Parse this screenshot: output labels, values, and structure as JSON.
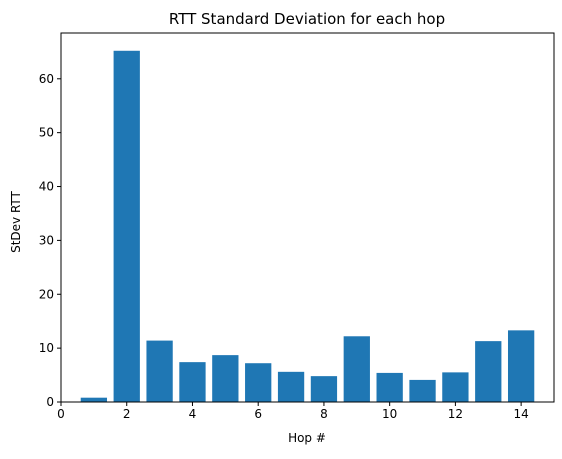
{
  "chart_data": {
    "type": "bar",
    "title": "RTT Standard Deviation for each hop",
    "xlabel": "Hop #",
    "ylabel": "StDev RTT",
    "x": [
      1,
      2,
      3,
      4,
      5,
      6,
      7,
      8,
      9,
      10,
      11,
      12,
      13,
      14
    ],
    "values": [
      0.8,
      65.2,
      11.4,
      7.4,
      8.7,
      7.2,
      5.6,
      4.8,
      12.2,
      5.4,
      4.1,
      5.5,
      11.3,
      13.3
    ],
    "xlim": [
      0.0,
      15.0
    ],
    "ylim": [
      0,
      68.5
    ],
    "xticks": [
      "0",
      "2",
      "4",
      "6",
      "8",
      "10",
      "12",
      "14"
    ],
    "yticks": [
      "0",
      "10",
      "20",
      "30",
      "40",
      "50",
      "60"
    ],
    "bar_color": "#1f77b4",
    "grid": false,
    "legend": false
  }
}
